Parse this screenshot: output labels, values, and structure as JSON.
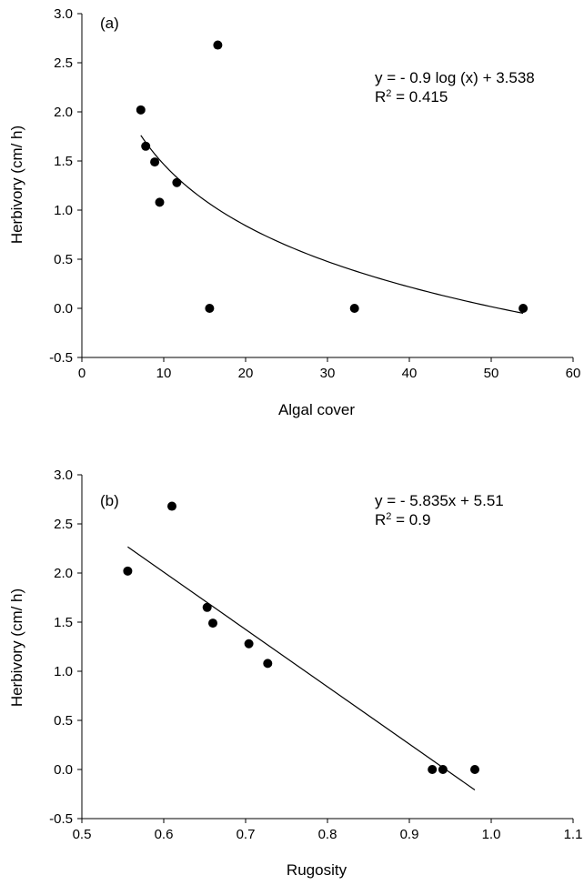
{
  "chart_data": [
    {
      "type": "scatter",
      "panel_label": "(a)",
      "xlabel": "Algal cover",
      "ylabel": "Herbivory (cm/ h)",
      "xlim": [
        0,
        60
      ],
      "ylim": [
        -0.5,
        3.0
      ],
      "xticks": [
        "0",
        "10",
        "20",
        "30",
        "40",
        "50",
        "60"
      ],
      "yticks": [
        "-0.5",
        "0.0",
        "0.5",
        "1.0",
        "1.5",
        "2.0",
        "2.5",
        "3.0"
      ],
      "grid": false,
      "points": {
        "x": [
          7.2,
          7.8,
          8.9,
          9.5,
          11.6,
          15.6,
          16.6,
          33.3,
          53.9
        ],
        "y": [
          2.02,
          1.65,
          1.49,
          1.08,
          1.28,
          0.0,
          2.68,
          0.0,
          0.0
        ]
      },
      "trendline": {
        "kind": "log",
        "a": -0.9,
        "b": 3.538,
        "x_range": [
          7.2,
          53.9
        ]
      },
      "equation": "y = - 0.9 log (x) + 3.538",
      "r2_prefix": "R",
      "r2_exp": "2",
      "r2_suffix": " = 0.415",
      "color": "#000000"
    },
    {
      "type": "scatter",
      "panel_label": "(b)",
      "xlabel": "Rugosity",
      "ylabel": "Herbivory (cm/ h)",
      "xlim": [
        0.5,
        1.1
      ],
      "ylim": [
        -0.5,
        3.0
      ],
      "xticks": [
        "0.5",
        "0.6",
        "0.7",
        "0.8",
        "0.9",
        "1.0",
        "1.1"
      ],
      "yticks": [
        "-0.5",
        "0.0",
        "0.5",
        "1.0",
        "1.5",
        "2.0",
        "2.5",
        "3.0"
      ],
      "grid": false,
      "points": {
        "x": [
          0.556,
          0.61,
          0.653,
          0.66,
          0.704,
          0.727,
          0.928,
          0.941,
          0.98
        ],
        "y": [
          2.02,
          2.68,
          1.65,
          1.49,
          1.28,
          1.08,
          0.0,
          0.0,
          0.0
        ]
      },
      "trendline": {
        "kind": "linear",
        "slope": -5.835,
        "intercept": 5.51,
        "x_range": [
          0.556,
          0.98
        ]
      },
      "equation": "y = - 5.835x + 5.51",
      "r2_prefix": "R",
      "r2_exp": "2",
      "r2_suffix": " = 0.9",
      "color": "#000000"
    }
  ]
}
